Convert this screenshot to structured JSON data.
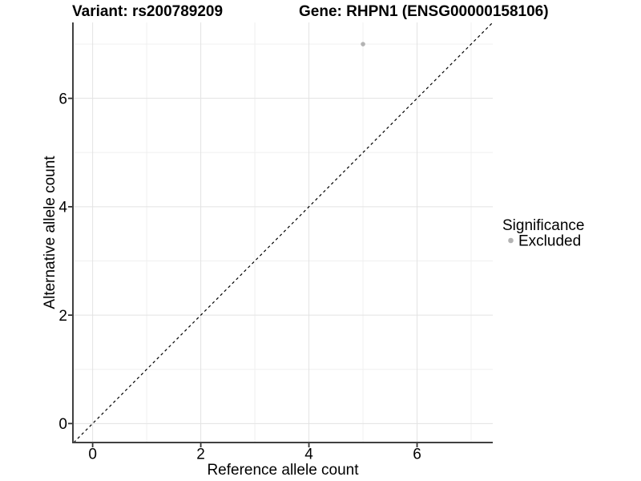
{
  "chart_data": {
    "type": "scatter",
    "title": "Variant: rs200789209    Gene: RHPN1 (ENSG00000158106)",
    "title_left": "Variant: rs200789209",
    "title_right": "Gene: RHPN1 (ENSG00000158106)",
    "xlabel": "Reference allele count",
    "ylabel": "Alternative allele count",
    "xlim": [
      -0.35,
      7.4
    ],
    "ylim": [
      -0.35,
      7.4
    ],
    "x_ticks": [
      0,
      2,
      4,
      6
    ],
    "y_ticks": [
      0,
      2,
      4,
      6
    ],
    "x_minor_breaks": [
      1,
      3,
      5,
      7
    ],
    "y_minor_breaks": [
      1,
      3,
      5,
      7
    ],
    "grid": "major+minor",
    "identity_line": {
      "slope": 1,
      "intercept": 0,
      "style": "dashed",
      "color": "#000000"
    },
    "series": [
      {
        "name": "Excluded",
        "color": "#b3b3b3",
        "points": [
          {
            "x": 5,
            "y": 7
          }
        ]
      }
    ],
    "legend": {
      "title": "Significance",
      "position": "right",
      "entries": [
        {
          "label": "Excluded",
          "color": "#b3b3b3",
          "marker": "circle"
        }
      ]
    }
  },
  "style": {
    "background": "#ffffff",
    "grid_major_color": "#e3e3e3",
    "grid_minor_color": "#f0f0f0",
    "axis_line_color": "#404040",
    "tick_mark_color": "#333333",
    "tick_label_color": "#1a1a1a",
    "text_color": "#000000",
    "point_color": "#b3b3b3"
  }
}
